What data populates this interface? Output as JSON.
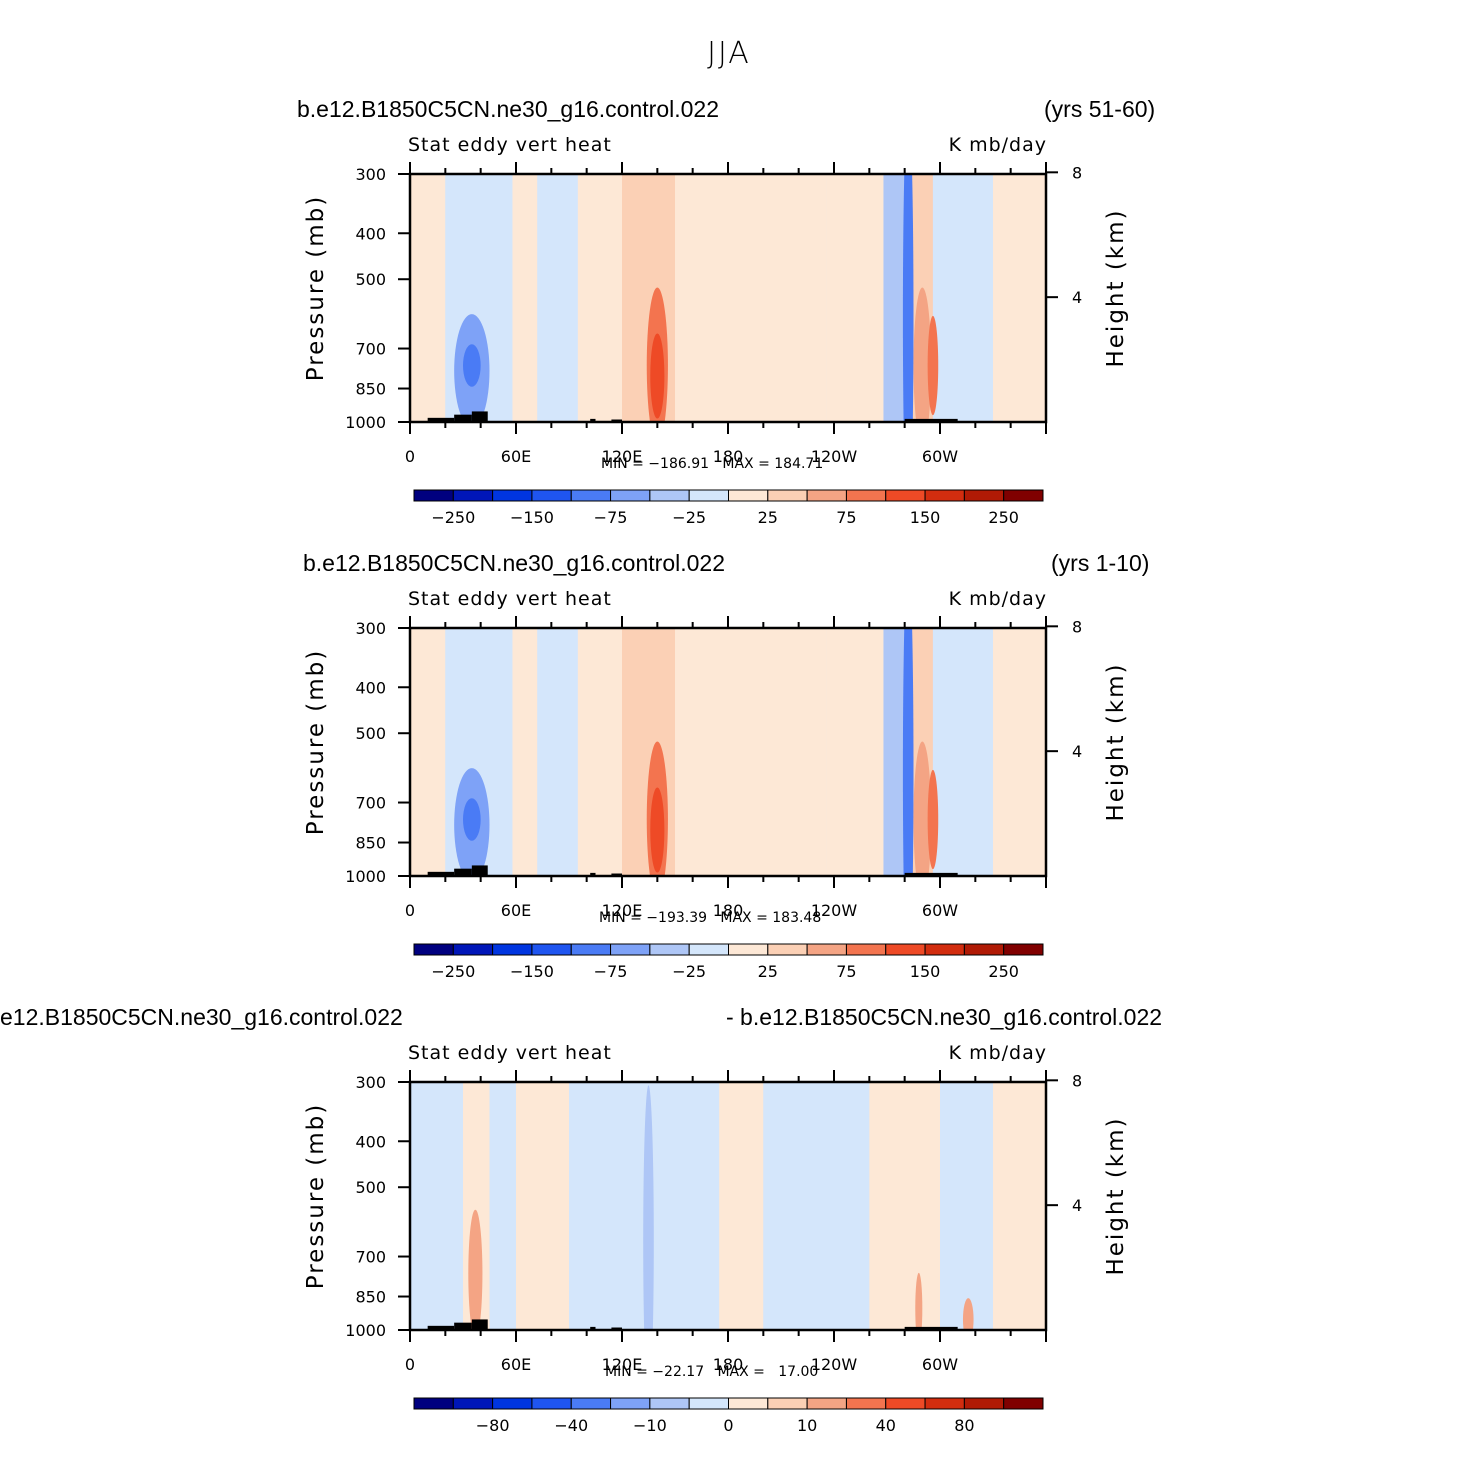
{
  "figure_title": "JJA",
  "colors": {
    "palette": [
      "#00007f",
      "#0016b8",
      "#0035e0",
      "#1f55f0",
      "#4a7bf5",
      "#7ea2f7",
      "#aec6f6",
      "#d4e6fb",
      "#fde8d6",
      "#fbd0b5",
      "#f4a484",
      "#f3744f",
      "#ee4a26",
      "#d22d0f",
      "#b01a05",
      "#800000"
    ],
    "land": "#000000"
  },
  "panels": [
    {
      "case_left": "b.e12.B1850C5CN.ne30_g16.control.022",
      "case_right": "(yrs 51-60)",
      "variable": "Stat eddy vert heat",
      "units": "K mb/day",
      "min_max": "MIN = −186.91   MAX = 184.71",
      "colorbar_labels": [
        "−250",
        "−150",
        "−75",
        "−25",
        "25",
        "75",
        "150",
        "250"
      ]
    },
    {
      "case_left": "b.e12.B1850C5CN.ne30_g16.control.022",
      "case_right": "(yrs 1-10)",
      "variable": "Stat eddy vert heat",
      "units": "K mb/day",
      "min_max": "MIN = −193.39   MAX = 183.48",
      "colorbar_labels": [
        "−250",
        "−150",
        "−75",
        "−25",
        "25",
        "75",
        "150",
        "250"
      ]
    },
    {
      "case_left": "e12.B1850C5CN.ne30_g16.control.022",
      "case_right": "- b.e12.B1850C5CN.ne30_g16.control.022",
      "variable": "Stat eddy vert heat",
      "units": "K mb/day",
      "min_max": "MIN = −22.17   MAX =   17.00",
      "colorbar_labels": [
        "−80",
        "−40",
        "−10",
        "0",
        "10",
        "40",
        "80"
      ]
    }
  ],
  "chart_data": [
    {
      "type": "heatmap",
      "title": "Stat eddy vert heat",
      "xlabel": "",
      "ylabel": "Pressure (mb)",
      "y2label": "Height (km)",
      "x_ticks": [
        "0",
        "60E",
        "120E",
        "180",
        "120W",
        "60W"
      ],
      "y_ticks": [
        "300",
        "400",
        "500",
        "700",
        "850",
        "1000"
      ],
      "y2_ticks": [
        "8",
        "4"
      ],
      "xlim": [
        0,
        360
      ],
      "ylim": [
        1000,
        300
      ],
      "min": -186.91,
      "max": 184.71,
      "contour_levels": [
        -250,
        -150,
        -75,
        -25,
        25,
        75,
        150,
        250
      ]
    },
    {
      "type": "heatmap",
      "title": "Stat eddy vert heat",
      "xlabel": "",
      "ylabel": "Pressure (mb)",
      "y2label": "Height (km)",
      "x_ticks": [
        "0",
        "60E",
        "120E",
        "180",
        "120W",
        "60W"
      ],
      "y_ticks": [
        "300",
        "400",
        "500",
        "700",
        "850",
        "1000"
      ],
      "y2_ticks": [
        "8",
        "4"
      ],
      "xlim": [
        0,
        360
      ],
      "ylim": [
        1000,
        300
      ],
      "min": -193.39,
      "max": 183.48,
      "contour_levels": [
        -250,
        -150,
        -75,
        -25,
        25,
        75,
        150,
        250
      ]
    },
    {
      "type": "heatmap",
      "title": "Stat eddy vert heat",
      "xlabel": "",
      "ylabel": "Pressure (mb)",
      "y2label": "Height (km)",
      "x_ticks": [
        "0",
        "60E",
        "120E",
        "180",
        "120W",
        "60W"
      ],
      "y_ticks": [
        "300",
        "400",
        "500",
        "700",
        "850",
        "1000"
      ],
      "y2_ticks": [
        "8",
        "4"
      ],
      "xlim": [
        0,
        360
      ],
      "ylim": [
        1000,
        300
      ],
      "min": -22.17,
      "max": 17.0,
      "contour_levels": [
        -80,
        -40,
        -10,
        0,
        10,
        40,
        80
      ]
    }
  ]
}
